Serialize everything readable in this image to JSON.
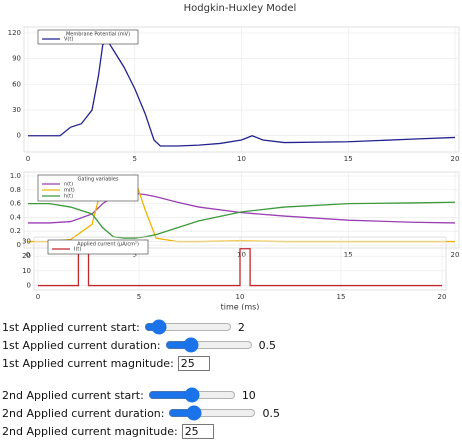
{
  "chart_data": [
    {
      "type": "line",
      "title": "Hodgkin-Huxley Model",
      "legend_title": "Membrane Potential (mV)",
      "x": [
        0,
        1.5,
        2,
        2.5,
        3,
        3.3,
        3.5,
        3.7,
        4,
        4.5,
        5,
        5.5,
        5.9,
        6.2,
        7,
        8,
        9,
        10,
        10.5,
        11,
        12,
        15,
        18,
        20
      ],
      "series": [
        {
          "name": "V(t)",
          "color": "#23238e",
          "values": [
            0,
            0,
            10,
            14,
            30,
            70,
            106,
            112,
            100,
            80,
            55,
            25,
            -5,
            -12,
            -12,
            -11,
            -9,
            -5,
            0,
            -5,
            -8,
            -7,
            -4,
            -2
          ]
        }
      ],
      "xlim": [
        0,
        20
      ],
      "ylim": [
        -19,
        127
      ],
      "xticks": [
        0,
        5,
        10,
        15,
        20
      ],
      "yticks": [
        0,
        30,
        60,
        90,
        120
      ],
      "grid": true
    },
    {
      "type": "line",
      "legend_title": "Gating variables",
      "x": [
        0,
        1,
        2,
        3,
        3.5,
        4,
        4.5,
        5,
        5.5,
        6,
        7,
        8,
        10,
        12,
        15,
        18,
        20
      ],
      "series": [
        {
          "name": "n(t)",
          "color": "#9b3fb5",
          "values": [
            0.32,
            0.32,
            0.34,
            0.45,
            0.6,
            0.7,
            0.75,
            0.75,
            0.73,
            0.7,
            0.62,
            0.55,
            0.47,
            0.42,
            0.36,
            0.33,
            0.32
          ]
        },
        {
          "name": "m(t)",
          "color": "#f0b400",
          "values": [
            0.05,
            0.05,
            0.08,
            0.3,
            0.9,
            1.0,
            1.0,
            0.95,
            0.5,
            0.1,
            0.05,
            0.05,
            0.06,
            0.05,
            0.05,
            0.05,
            0.05
          ]
        },
        {
          "name": "h(t)",
          "color": "#3a9a3a",
          "values": [
            0.6,
            0.6,
            0.55,
            0.45,
            0.25,
            0.12,
            0.1,
            0.1,
            0.12,
            0.15,
            0.25,
            0.35,
            0.48,
            0.55,
            0.6,
            0.61,
            0.62
          ]
        }
      ],
      "xlim": [
        0,
        20
      ],
      "ylim": [
        -0.043,
        1.058
      ],
      "xticks": [
        0,
        5,
        10,
        15,
        20
      ],
      "yticks": [
        0,
        0.2,
        0.4,
        0.6,
        0.8,
        {
          "value": 1,
          "label": "1.0"
        }
      ],
      "grid": true
    },
    {
      "type": "line",
      "legend_title": "Applied current (μA/cm²)",
      "xlabel": "time (ms)",
      "x": [
        0,
        2,
        2,
        2.5,
        2.5,
        10,
        10,
        10.5,
        10.5,
        20
      ],
      "series": [
        {
          "name": "I(t)",
          "color": "#c0282d",
          "values": [
            0,
            0,
            25,
            25,
            0,
            0,
            25,
            25,
            0,
            0
          ]
        }
      ],
      "xlim": [
        0,
        20
      ],
      "ylim": [
        -3,
        33
      ],
      "xticks": [
        0,
        5,
        10,
        15,
        20
      ],
      "yticks": [
        0,
        10,
        20,
        30
      ],
      "grid": true
    }
  ],
  "controls": [
    {
      "label": "1st Applied current start:",
      "value": 2
    },
    {
      "label": "1st Applied current duration:",
      "value": 0.5
    },
    {
      "label": "1st Applied current magnitude:",
      "value": 25
    },
    {
      "label": "2nd Applied current start:",
      "value": 10
    },
    {
      "label": "2nd Applied current duration:",
      "value": 0.5
    },
    {
      "label": "2nd Applied current magnitude:",
      "value": 25
    }
  ]
}
